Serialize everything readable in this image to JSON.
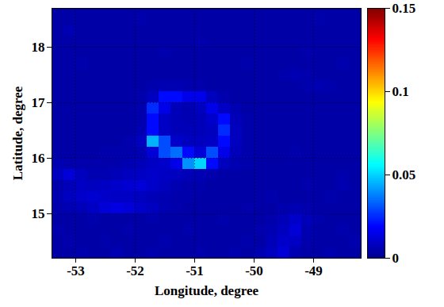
{
  "chart_data": {
    "type": "heatmap",
    "xlabel": "Longitude, degree",
    "ylabel": "Latitude, degree",
    "xlim": [
      -53.4,
      -48.2
    ],
    "ylim": [
      14.2,
      18.7
    ],
    "xticks": [
      -53,
      -52,
      -51,
      -50,
      -49
    ],
    "yticks": [
      15,
      16,
      17,
      18
    ],
    "grid": true,
    "color": "jet",
    "colorbar_range": [
      0,
      0.15
    ],
    "colorbar_ticks": [
      0,
      0.05,
      0.1,
      0.15
    ],
    "x": [
      -53.3,
      -53.1,
      -52.9,
      -52.7,
      -52.5,
      -52.3,
      -52.1,
      -51.9,
      -51.7,
      -51.5,
      -51.3,
      -51.1,
      -50.9,
      -50.7,
      -50.5,
      -50.3,
      -50.1,
      -49.9,
      -49.7,
      -49.5,
      -49.3,
      -49.1,
      -48.9,
      -48.7,
      -48.5,
      -48.3
    ],
    "y": [
      14.3,
      14.5,
      14.7,
      14.9,
      15.1,
      15.3,
      15.5,
      15.7,
      15.9,
      16.1,
      16.3,
      16.5,
      16.7,
      16.9,
      17.1,
      17.3,
      17.5,
      17.7,
      17.9,
      18.1,
      18.3,
      18.5,
      18.7
    ],
    "z": [
      [
        0.004,
        0.004,
        0.005,
        0.004,
        0.004,
        0.006,
        0.004,
        0.004,
        0.005,
        0.004,
        0.004,
        0.004,
        0.005,
        0.004,
        0.004,
        0.005,
        0.004,
        0.006,
        0.008,
        0.012,
        0.006,
        0.004,
        0.004,
        0.005,
        0.004,
        0.004
      ],
      [
        0.004,
        0.005,
        0.004,
        0.004,
        0.005,
        0.004,
        0.004,
        0.004,
        0.004,
        0.005,
        0.004,
        0.004,
        0.004,
        0.004,
        0.004,
        0.004,
        0.005,
        0.004,
        0.007,
        0.01,
        0.009,
        0.005,
        0.004,
        0.004,
        0.004,
        0.005
      ],
      [
        0.005,
        0.004,
        0.004,
        0.004,
        0.004,
        0.004,
        0.005,
        0.004,
        0.004,
        0.004,
        0.004,
        0.005,
        0.004,
        0.004,
        0.004,
        0.004,
        0.004,
        0.005,
        0.006,
        0.008,
        0.012,
        0.006,
        0.004,
        0.004,
        0.005,
        0.004
      ],
      [
        0.004,
        0.004,
        0.004,
        0.005,
        0.004,
        0.004,
        0.004,
        0.004,
        0.005,
        0.004,
        0.004,
        0.004,
        0.004,
        0.004,
        0.005,
        0.004,
        0.004,
        0.004,
        0.005,
        0.007,
        0.01,
        0.007,
        0.005,
        0.004,
        0.004,
        0.004
      ],
      [
        0.005,
        0.006,
        0.007,
        0.009,
        0.012,
        0.014,
        0.012,
        0.01,
        0.008,
        0.006,
        0.005,
        0.004,
        0.004,
        0.004,
        0.004,
        0.004,
        0.005,
        0.004,
        0.004,
        0.005,
        0.006,
        0.005,
        0.004,
        0.004,
        0.004,
        0.004
      ],
      [
        0.006,
        0.008,
        0.01,
        0.011,
        0.01,
        0.009,
        0.009,
        0.008,
        0.007,
        0.006,
        0.005,
        0.005,
        0.004,
        0.004,
        0.004,
        0.004,
        0.004,
        0.004,
        0.005,
        0.004,
        0.004,
        0.004,
        0.004,
        0.005,
        0.004,
        0.004
      ],
      [
        0.005,
        0.007,
        0.009,
        0.008,
        0.009,
        0.01,
        0.011,
        0.012,
        0.01,
        0.008,
        0.006,
        0.005,
        0.005,
        0.004,
        0.004,
        0.004,
        0.004,
        0.004,
        0.004,
        0.004,
        0.004,
        0.005,
        0.004,
        0.004,
        0.006,
        0.004
      ],
      [
        0.008,
        0.012,
        0.008,
        0.006,
        0.006,
        0.007,
        0.008,
        0.009,
        0.01,
        0.009,
        0.008,
        0.007,
        0.006,
        0.005,
        0.004,
        0.004,
        0.004,
        0.004,
        0.004,
        0.004,
        0.004,
        0.004,
        0.004,
        0.004,
        0.005,
        0.004
      ],
      [
        0.006,
        0.005,
        0.005,
        0.005,
        0.005,
        0.005,
        0.006,
        0.007,
        0.009,
        0.01,
        0.015,
        0.04,
        0.05,
        0.02,
        0.008,
        0.006,
        0.005,
        0.004,
        0.004,
        0.004,
        0.004,
        0.004,
        0.004,
        0.004,
        0.004,
        0.004
      ],
      [
        0.004,
        0.004,
        0.004,
        0.004,
        0.005,
        0.005,
        0.005,
        0.006,
        0.012,
        0.03,
        0.035,
        0.02,
        0.012,
        0.03,
        0.015,
        0.007,
        0.005,
        0.004,
        0.004,
        0.004,
        0.005,
        0.004,
        0.004,
        0.004,
        0.004,
        0.004
      ],
      [
        0.004,
        0.004,
        0.004,
        0.004,
        0.004,
        0.004,
        0.005,
        0.008,
        0.045,
        0.03,
        0.01,
        0.008,
        0.008,
        0.009,
        0.02,
        0.008,
        0.005,
        0.004,
        0.004,
        0.004,
        0.004,
        0.004,
        0.004,
        0.004,
        0.004,
        0.004
      ],
      [
        0.004,
        0.004,
        0.004,
        0.004,
        0.004,
        0.004,
        0.004,
        0.006,
        0.02,
        0.009,
        0.007,
        0.007,
        0.007,
        0.008,
        0.025,
        0.008,
        0.005,
        0.004,
        0.004,
        0.004,
        0.004,
        0.004,
        0.004,
        0.004,
        0.004,
        0.004
      ],
      [
        0.004,
        0.004,
        0.004,
        0.004,
        0.004,
        0.004,
        0.004,
        0.005,
        0.02,
        0.009,
        0.007,
        0.006,
        0.007,
        0.01,
        0.02,
        0.007,
        0.005,
        0.004,
        0.004,
        0.004,
        0.004,
        0.004,
        0.004,
        0.004,
        0.004,
        0.004
      ],
      [
        0.004,
        0.004,
        0.004,
        0.004,
        0.004,
        0.004,
        0.004,
        0.005,
        0.025,
        0.015,
        0.007,
        0.006,
        0.008,
        0.015,
        0.009,
        0.006,
        0.004,
        0.004,
        0.004,
        0.004,
        0.004,
        0.004,
        0.004,
        0.004,
        0.004,
        0.004
      ],
      [
        0.004,
        0.004,
        0.004,
        0.004,
        0.004,
        0.004,
        0.004,
        0.005,
        0.008,
        0.02,
        0.02,
        0.015,
        0.015,
        0.008,
        0.005,
        0.004,
        0.004,
        0.004,
        0.004,
        0.004,
        0.004,
        0.004,
        0.004,
        0.004,
        0.004,
        0.004
      ],
      [
        0.004,
        0.004,
        0.004,
        0.004,
        0.004,
        0.004,
        0.004,
        0.004,
        0.005,
        0.006,
        0.006,
        0.005,
        0.005,
        0.004,
        0.004,
        0.004,
        0.004,
        0.004,
        0.004,
        0.004,
        0.004,
        0.005,
        0.006,
        0.005,
        0.004,
        0.004
      ],
      [
        0.004,
        0.004,
        0.004,
        0.004,
        0.004,
        0.004,
        0.004,
        0.004,
        0.004,
        0.004,
        0.004,
        0.004,
        0.004,
        0.004,
        0.004,
        0.004,
        0.004,
        0.004,
        0.004,
        0.005,
        0.006,
        0.005,
        0.004,
        0.004,
        0.004,
        0.004
      ],
      [
        0.004,
        0.004,
        0.005,
        0.004,
        0.004,
        0.004,
        0.004,
        0.004,
        0.004,
        0.004,
        0.004,
        0.004,
        0.004,
        0.004,
        0.004,
        0.004,
        0.005,
        0.004,
        0.004,
        0.004,
        0.004,
        0.004,
        0.004,
        0.004,
        0.005,
        0.004
      ],
      [
        0.004,
        0.004,
        0.004,
        0.004,
        0.004,
        0.004,
        0.004,
        0.004,
        0.004,
        0.005,
        0.004,
        0.004,
        0.004,
        0.004,
        0.004,
        0.004,
        0.004,
        0.004,
        0.004,
        0.004,
        0.004,
        0.005,
        0.004,
        0.004,
        0.004,
        0.004
      ],
      [
        0.004,
        0.004,
        0.004,
        0.004,
        0.004,
        0.004,
        0.004,
        0.004,
        0.004,
        0.004,
        0.004,
        0.004,
        0.005,
        0.004,
        0.004,
        0.004,
        0.004,
        0.004,
        0.004,
        0.004,
        0.004,
        0.004,
        0.004,
        0.004,
        0.004,
        0.004
      ],
      [
        0.004,
        0.006,
        0.004,
        0.004,
        0.004,
        0.004,
        0.004,
        0.004,
        0.004,
        0.004,
        0.004,
        0.004,
        0.004,
        0.004,
        0.004,
        0.004,
        0.004,
        0.004,
        0.004,
        0.004,
        0.004,
        0.004,
        0.004,
        0.004,
        0.004,
        0.004
      ],
      [
        0.004,
        0.004,
        0.004,
        0.004,
        0.004,
        0.004,
        0.004,
        0.005,
        0.004,
        0.004,
        0.004,
        0.004,
        0.004,
        0.004,
        0.004,
        0.004,
        0.004,
        0.004,
        0.004,
        0.004,
        0.004,
        0.004,
        0.005,
        0.004,
        0.004,
        0.004
      ],
      [
        0.004,
        0.004,
        0.004,
        0.004,
        0.004,
        0.004,
        0.004,
        0.004,
        0.004,
        0.004,
        0.004,
        0.004,
        0.004,
        0.004,
        0.004,
        0.004,
        0.004,
        0.004,
        0.004,
        0.004,
        0.004,
        0.004,
        0.004,
        0.004,
        0.004,
        0.004
      ]
    ]
  }
}
